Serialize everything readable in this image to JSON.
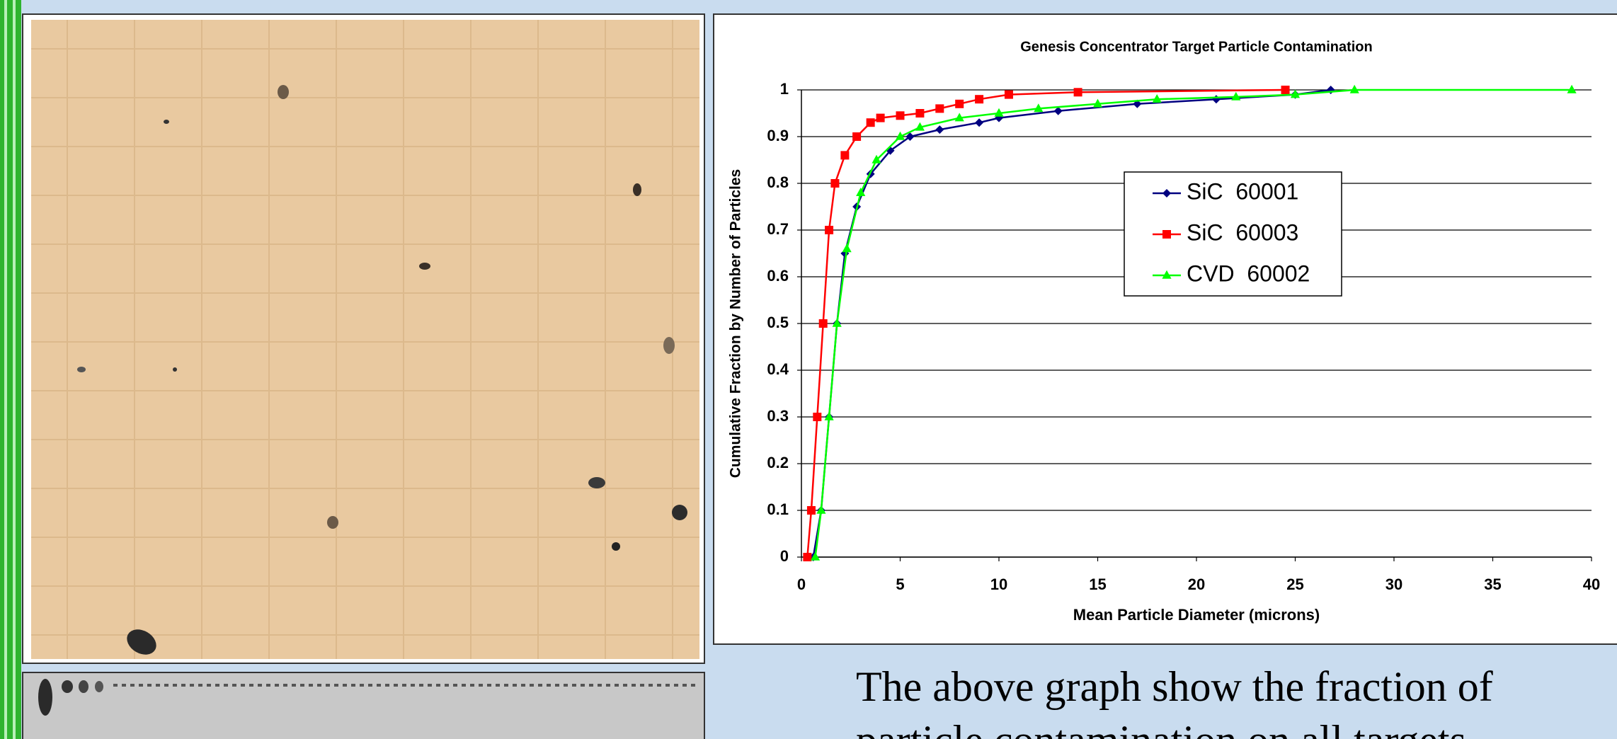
{
  "chart_data": {
    "type": "line",
    "title": "Genesis Concentrator Target Particle Contamination",
    "x_label": "Mean Particle Diameter (microns)",
    "y_label": "Cumulative Fraction by Number of Particles",
    "xlim": [
      0,
      40
    ],
    "xticks": [
      0,
      5,
      10,
      15,
      20,
      25,
      30,
      35,
      40
    ],
    "ylim": [
      0,
      1
    ],
    "yticks": [
      0,
      0.1,
      0.2,
      0.3,
      0.4,
      0.5,
      0.6,
      0.7,
      0.8,
      0.9,
      1
    ],
    "grid": true,
    "series": [
      {
        "name": "SiC  60001",
        "color": "#000080",
        "marker": "diamond",
        "x": [
          0.6,
          1,
          1.4,
          1.8,
          2.2,
          2.8,
          3.5,
          4.5,
          5.5,
          7,
          9,
          10,
          13,
          17,
          21,
          25,
          26.8
        ],
        "values": [
          0,
          0.1,
          0.3,
          0.5,
          0.65,
          0.75,
          0.82,
          0.87,
          0.9,
          0.915,
          0.93,
          0.94,
          0.955,
          0.97,
          0.98,
          0.99,
          1
        ]
      },
      {
        "name": "SiC  60003",
        "color": "#ff0000",
        "marker": "square",
        "x": [
          0.3,
          0.5,
          0.8,
          1.1,
          1.4,
          1.7,
          2.2,
          2.8,
          3.5,
          4,
          5,
          6,
          7,
          8,
          9,
          10.5,
          14,
          24.5
        ],
        "values": [
          0,
          0.1,
          0.3,
          0.5,
          0.7,
          0.8,
          0.86,
          0.9,
          0.93,
          0.94,
          0.945,
          0.95,
          0.96,
          0.97,
          0.98,
          0.99,
          0.995,
          1
        ]
      },
      {
        "name": "CVD  60002",
        "color": "#00ff00",
        "marker": "triangle",
        "x": [
          0.7,
          1,
          1.4,
          1.8,
          2.3,
          3,
          3.8,
          5,
          6,
          8,
          10,
          12,
          15,
          18,
          22,
          25,
          28,
          39
        ],
        "values": [
          0,
          0.1,
          0.3,
          0.5,
          0.66,
          0.78,
          0.85,
          0.9,
          0.92,
          0.94,
          0.95,
          0.96,
          0.97,
          0.98,
          0.985,
          0.99,
          1,
          1
        ]
      }
    ]
  },
  "caption": {
    "lines": [
      "The above graph show the fraction of",
      "particle contamination on all targets"
    ]
  }
}
